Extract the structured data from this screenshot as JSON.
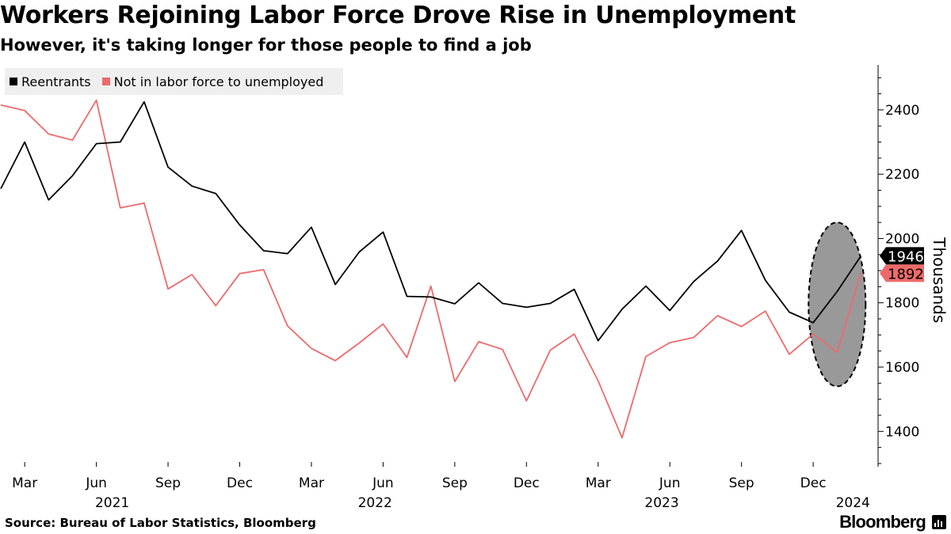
{
  "header": {
    "title": "Workers Rejoining Labor Force Drove Rise in Unemployment",
    "subtitle": "However, it's taking longer for those people to find a job"
  },
  "footer": {
    "source": "Source: Bureau of Labor Statistics, Bloomberg",
    "brand": "Bloomberg"
  },
  "chart_data": {
    "type": "line",
    "title": "Workers Rejoining Labor Force Drove Rise in Unemployment",
    "subtitle": "However, it's taking longer for those people to find a job",
    "ylabel": "Thousands",
    "xlabel": "",
    "ylim": [
      1290,
      2540
    ],
    "yticks": [
      1400,
      1600,
      1800,
      2000,
      2200,
      2400
    ],
    "grid": false,
    "legend_position": "top-left",
    "x_start": "2021-02",
    "x": [
      "Feb 2021",
      "Mar 2021",
      "Apr 2021",
      "May 2021",
      "Jun 2021",
      "Jul 2021",
      "Aug 2021",
      "Sep 2021",
      "Oct 2021",
      "Nov 2021",
      "Dec 2021",
      "Jan 2022",
      "Feb 2022",
      "Mar 2022",
      "Apr 2022",
      "May 2022",
      "Jun 2022",
      "Jul 2022",
      "Aug 2022",
      "Sep 2022",
      "Oct 2022",
      "Nov 2022",
      "Dec 2022",
      "Jan 2023",
      "Feb 2023",
      "Mar 2023",
      "Apr 2023",
      "May 2023",
      "Jun 2023",
      "Jul 2023",
      "Aug 2023",
      "Sep 2023",
      "Oct 2023",
      "Nov 2023",
      "Dec 2023",
      "Jan 2024",
      "Feb 2024"
    ],
    "month_ticks": [
      {
        "index": 1,
        "label": "Mar"
      },
      {
        "index": 4,
        "label": "Jun"
      },
      {
        "index": 7,
        "label": "Sep"
      },
      {
        "index": 10,
        "label": "Dec"
      },
      {
        "index": 13,
        "label": "Mar"
      },
      {
        "index": 16,
        "label": "Jun"
      },
      {
        "index": 19,
        "label": "Sep"
      },
      {
        "index": 22,
        "label": "Dec"
      },
      {
        "index": 25,
        "label": "Mar"
      },
      {
        "index": 28,
        "label": "Jun"
      },
      {
        "index": 31,
        "label": "Sep"
      },
      {
        "index": 34,
        "label": "Dec"
      }
    ],
    "year_ticks": [
      {
        "index": 4,
        "label": "2021"
      },
      {
        "index": 15,
        "label": "2022"
      },
      {
        "index": 27,
        "label": "2023"
      },
      {
        "index": 35,
        "label": "2024"
      }
    ],
    "series": [
      {
        "name": "Reentrants",
        "color": "#000000",
        "label_text_color": "#ffffff",
        "last_label": "1946",
        "values": [
          2155,
          2300,
          2120,
          2195,
          2295,
          2300,
          2425,
          2222,
          2163,
          2140,
          2042,
          1962,
          1953,
          2035,
          1857,
          1958,
          2020,
          1820,
          1818,
          1797,
          1862,
          1798,
          1786,
          1798,
          1842,
          1682,
          1780,
          1852,
          1776,
          1866,
          1930,
          2025,
          1870,
          1771,
          1738,
          1835,
          1946
        ]
      },
      {
        "name": "Not in labor force to unemployed",
        "color": "#ee6a6a",
        "label_text_color": "#000000",
        "last_label": "1892",
        "values": [
          2415,
          2398,
          2325,
          2306,
          2430,
          2095,
          2110,
          1843,
          1888,
          1791,
          1891,
          1903,
          1728,
          1658,
          1620,
          1675,
          1734,
          1630,
          1852,
          1555,
          1679,
          1655,
          1495,
          1653,
          1703,
          1557,
          1380,
          1633,
          1676,
          1692,
          1760,
          1726,
          1774,
          1640,
          1703,
          1646,
          1892
        ]
      }
    ],
    "annotations": [
      {
        "type": "ellipse",
        "fill": "#999999",
        "stroke": "#000000",
        "dashed": true,
        "x_index": 35,
        "y_center": 1795,
        "y_radius": 255
      }
    ]
  }
}
